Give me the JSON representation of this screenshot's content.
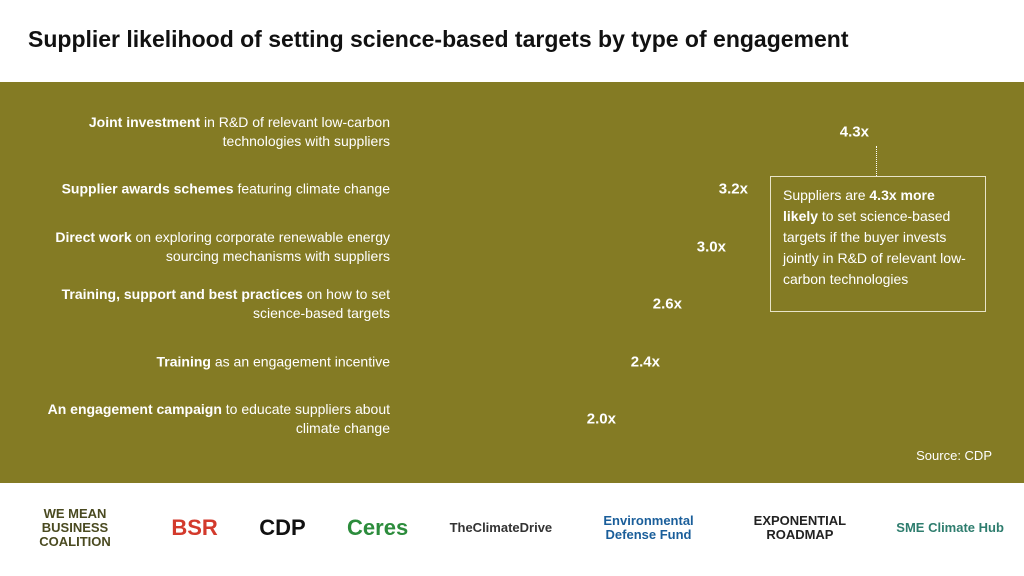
{
  "chart_data": {
    "type": "barh",
    "title": "Supplier likelihood of setting science-based targets by type of engagement",
    "categories": [
      {
        "strong": "Joint investment",
        "text": "in R&D of relevant low-carbon technologies with suppliers"
      },
      {
        "strong": "Supplier awards schemes",
        "text": "featuring climate change"
      },
      {
        "strong": "Direct work",
        "text": "on exploring corporate renewable energy sourcing mechanisms with suppliers"
      },
      {
        "strong": "Training, support and best practices",
        "text": "on how to set science-based targets"
      },
      {
        "strong": "Training",
        "text": "as an engagement incentive"
      },
      {
        "strong": "An engagement campaign",
        "text": "to educate suppliers about climate change"
      }
    ],
    "values": [
      4.3,
      3.2,
      3.0,
      2.6,
      2.4,
      2.0
    ],
    "value_labels": [
      "4.3x",
      "3.2x",
      "3.0x",
      "2.6x",
      "2.4x",
      "2.0x"
    ],
    "color": "#000000",
    "annotation": {
      "before": "Suppliers are",
      "strong": "4.3x more likely",
      "after": "to set science-based targets if the buyer invests jointly in R&D of relevant low-carbon technologies"
    },
    "source": "Source: CDP",
    "logos": [
      "WE MEAN BUSINESS COALITION",
      "BSR",
      "CDP",
      "Ceres",
      "TheClimateDrive",
      "Environmental Defense Fund",
      "EXPONENTIAL ROADMAP",
      "SME Climate Hub"
    ]
  }
}
